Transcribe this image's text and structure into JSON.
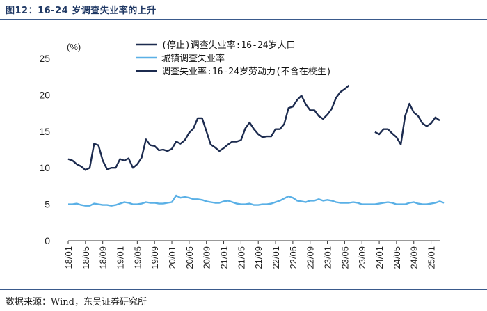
{
  "figure_title": "图12：16-24 岁调查失业率的上升",
  "source": "数据来源：Wind，东吴证券研究所",
  "chart_data": {
    "type": "line",
    "title": "16-24 岁调查失业率的上升",
    "ylabel_unit": "(%)",
    "ylim": [
      0,
      25
    ],
    "yticks": [
      0,
      5,
      10,
      15,
      20,
      25
    ],
    "xticks": [
      "18/01",
      "18/05",
      "18/09",
      "19/01",
      "19/05",
      "19/09",
      "20/01",
      "20/05",
      "20/09",
      "21/01",
      "21/05",
      "21/09",
      "22/01",
      "22/05",
      "22/09",
      "23/01",
      "23/05",
      "23/09",
      "24/01",
      "24/05",
      "24/09",
      "25/01"
    ],
    "x_start": "2018-01",
    "x_end": "2025-03",
    "series": [
      {
        "name": "(停止)调查失业率:16-24岁人口",
        "color": "#1c2b4f",
        "start": "2018-01",
        "values": [
          11.2,
          11.0,
          10.5,
          10.2,
          9.7,
          10.0,
          13.3,
          13.1,
          11.0,
          9.8,
          10.0,
          10.0,
          11.2,
          11.0,
          11.3,
          10.0,
          10.5,
          11.4,
          13.9,
          13.1,
          13.0,
          12.4,
          12.5,
          12.3,
          12.6,
          13.6,
          13.3,
          13.8,
          14.8,
          15.4,
          16.8,
          16.8,
          15.0,
          13.2,
          12.8,
          12.3,
          12.7,
          13.2,
          13.6,
          13.6,
          13.8,
          15.4,
          16.2,
          15.3,
          14.6,
          14.2,
          14.3,
          14.3,
          15.3,
          15.3,
          16.0,
          18.2,
          18.4,
          19.3,
          19.9,
          18.7,
          17.9,
          17.9,
          17.1,
          16.7,
          17.3,
          18.1,
          19.6,
          20.4,
          20.8,
          21.3
        ]
      },
      {
        "name": "城镇调查失业率",
        "color": "#5ab0e6",
        "start": "2018-01",
        "values": [
          5.0,
          5.0,
          5.1,
          4.9,
          4.8,
          4.8,
          5.1,
          5.0,
          4.9,
          4.9,
          4.8,
          4.9,
          5.1,
          5.3,
          5.2,
          5.0,
          5.0,
          5.1,
          5.3,
          5.2,
          5.2,
          5.1,
          5.1,
          5.2,
          5.3,
          6.2,
          5.9,
          6.0,
          5.9,
          5.7,
          5.7,
          5.6,
          5.4,
          5.3,
          5.2,
          5.2,
          5.4,
          5.5,
          5.3,
          5.1,
          5.0,
          5.0,
          5.1,
          4.9,
          4.9,
          5.0,
          5.0,
          5.1,
          5.3,
          5.5,
          5.8,
          6.1,
          5.9,
          5.5,
          5.4,
          5.3,
          5.5,
          5.5,
          5.7,
          5.5,
          5.6,
          5.5,
          5.3,
          5.2,
          5.2,
          5.2,
          5.3,
          5.2,
          5.0,
          5.0,
          5.0,
          5.0,
          5.1,
          5.2,
          5.3,
          5.2,
          5.0,
          5.0,
          5.0,
          5.2,
          5.3,
          5.1,
          5.0,
          5.0,
          5.1,
          5.2,
          5.4,
          5.2
        ]
      },
      {
        "name": "调查失业率:16-24岁劳动力(不含在校生)",
        "color": "#1c2b4f",
        "start": "2023-12",
        "values": [
          14.9,
          14.6,
          15.3,
          15.3,
          14.7,
          14.2,
          13.2,
          17.1,
          18.8,
          17.6,
          17.1,
          16.1,
          15.7,
          16.1,
          16.9,
          16.5
        ]
      }
    ]
  }
}
